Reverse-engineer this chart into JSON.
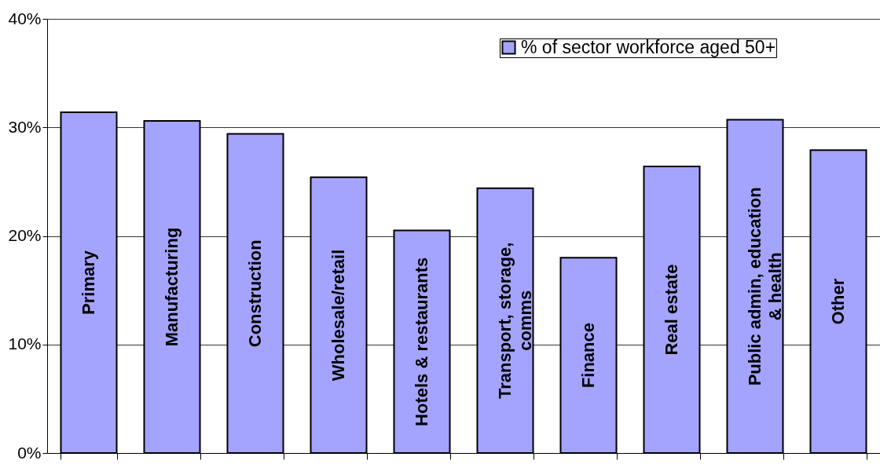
{
  "chart_data": {
    "type": "bar",
    "categories": [
      "Primary",
      "Manufacturing",
      "Construction",
      "Wholesale/retail",
      "Hotels & restaurants",
      "Transport, storage, comms",
      "Finance",
      "Real estate",
      "Public admin, education & health",
      "Other"
    ],
    "series": [
      {
        "name": "% of sector workforce aged 50+",
        "color": "#a4a4ff",
        "values": [
          31.4,
          30.6,
          29.4,
          25.4,
          20.5,
          24.4,
          18.0,
          26.4,
          30.7,
          27.9
        ]
      }
    ],
    "ylim": [
      0,
      40
    ],
    "yticks": [
      {
        "value": 0,
        "label": "0%"
      },
      {
        "value": 10,
        "label": "10%"
      },
      {
        "value": 20,
        "label": "20%"
      },
      {
        "value": 30,
        "label": "30%"
      },
      {
        "value": 40,
        "label": "40%"
      }
    ],
    "grid": "y",
    "legend": "top right",
    "tick_labels": "y"
  }
}
